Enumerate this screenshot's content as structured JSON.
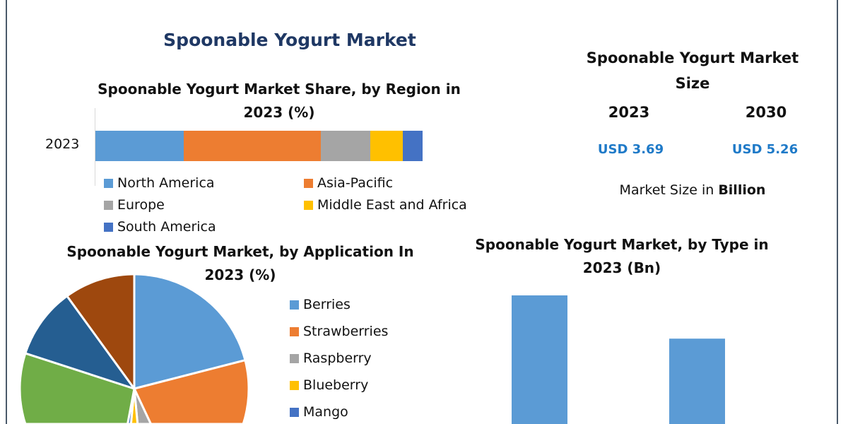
{
  "title": "Spoonable Yogurt Market",
  "market_size": {
    "title": "Spoonable Yogurt Market Size",
    "years": [
      "2023",
      "2030"
    ],
    "values": [
      "USD 3.69",
      "USD 5.26"
    ],
    "note_prefix": "Market Size in ",
    "note_bold": "Billion"
  },
  "chart_data": [
    {
      "type": "bar",
      "orientation": "horizontal-stacked",
      "title": "Spoonable Yogurt Market Share, by Region in 2023 (%)",
      "categories": [
        "2023"
      ],
      "series": [
        {
          "name": "North America",
          "values": [
            27
          ],
          "color": "#5b9bd5"
        },
        {
          "name": "Asia-Pacific",
          "values": [
            42
          ],
          "color": "#ed7d31"
        },
        {
          "name": "Europe",
          "values": [
            15
          ],
          "color": "#a5a5a5"
        },
        {
          "name": "Middle East and Africa",
          "values": [
            10
          ],
          "color": "#ffc000"
        },
        {
          "name": "South America",
          "values": [
            6
          ],
          "color": "#4472c4"
        }
      ],
      "legend": "bottom"
    },
    {
      "type": "pie",
      "title": "Spoonable Yogurt Market, by Application In 2023 (%)",
      "slices": [
        {
          "name": "Berries",
          "value": 21,
          "color": "#5b9bd5"
        },
        {
          "name": "Strawberries",
          "value": 22,
          "color": "#ed7d31"
        },
        {
          "name": "Raspberry",
          "value": 5.5,
          "color": "#a5a5a5"
        },
        {
          "name": "Blueberry",
          "value": 3,
          "color": "#ffc000"
        },
        {
          "name": "Mango",
          "value": 1.5,
          "color": "#4472c4"
        },
        {
          "value": 27,
          "color": "#70ad47"
        },
        {
          "value": 10,
          "color": "#255e91"
        },
        {
          "value": 10,
          "color": "#9e480e"
        }
      ],
      "legend": "right"
    },
    {
      "type": "bar",
      "title": "Spoonable Yogurt Market, by Type in 2023 (Bn)",
      "values": [
        2.14,
        1.55
      ],
      "color": "#5b9bd5"
    }
  ]
}
